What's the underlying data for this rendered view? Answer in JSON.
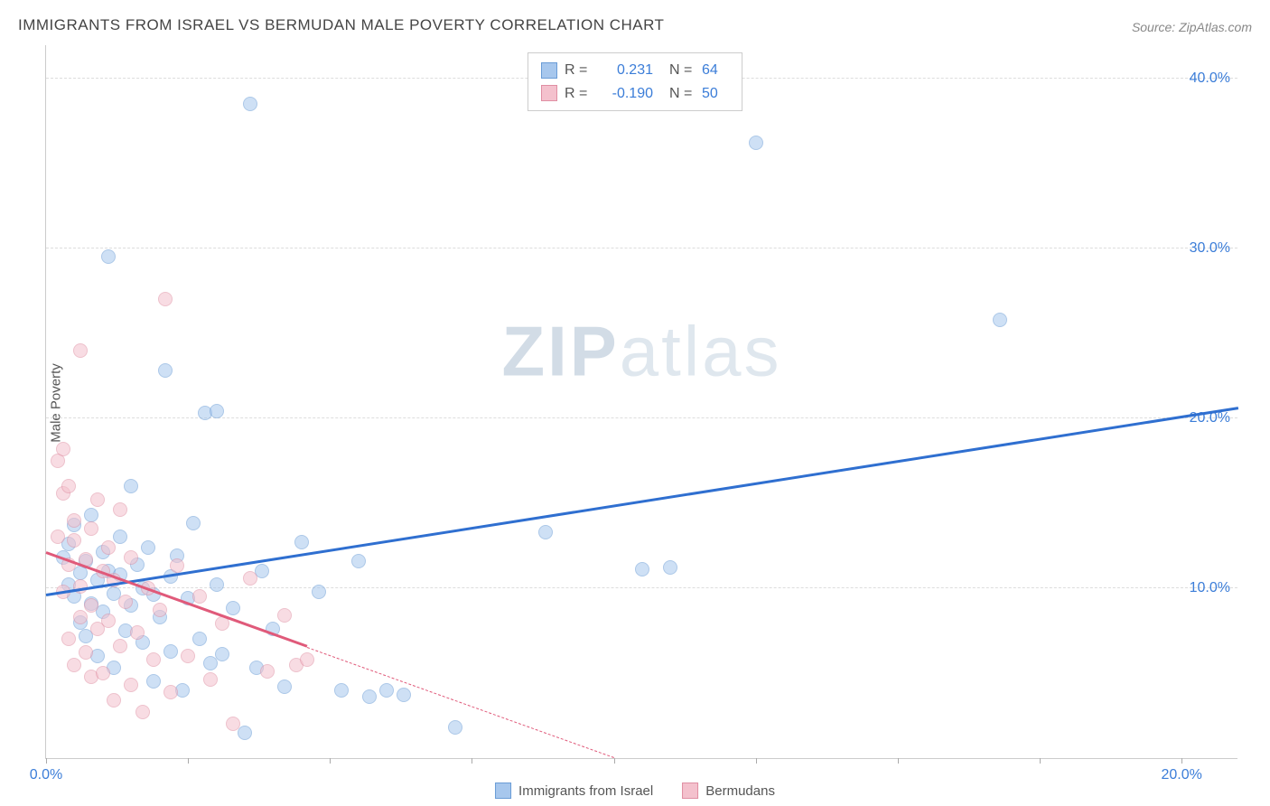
{
  "title": "IMMIGRANTS FROM ISRAEL VS BERMUDAN MALE POVERTY CORRELATION CHART",
  "source_prefix": "Source: ",
  "source": "ZipAtlas.com",
  "watermark_bold": "ZIP",
  "watermark_rest": "atlas",
  "ylabel": "Male Poverty",
  "chart": {
    "type": "scatter",
    "background_color": "#ffffff",
    "grid_color": "#dddddd",
    "axis_color": "#cccccc",
    "tick_color": "#3b7dd8",
    "xlim": [
      0,
      21
    ],
    "ylim": [
      0,
      42
    ],
    "yticks": [
      10,
      20,
      30,
      40
    ],
    "ytick_labels": [
      "10.0%",
      "20.0%",
      "30.0%",
      "40.0%"
    ],
    "xticks_visible": [
      0,
      20
    ],
    "xtick_labels": [
      "0.0%",
      "20.0%"
    ],
    "xtick_marks": [
      0,
      2.5,
      5,
      7.5,
      10,
      12.5,
      15,
      17.5,
      20
    ],
    "point_radius": 8,
    "point_border_width": 1,
    "point_opacity": 0.55,
    "trend_line_width": 3
  },
  "series": [
    {
      "name": "Immigrants from Israel",
      "fill": "#a7c7ed",
      "stroke": "#6a9cd6",
      "trend_color": "#2f6fd0",
      "r": 0.231,
      "n": 64,
      "trend": {
        "x1": 0,
        "y1": 9.5,
        "x2": 21,
        "y2": 20.5,
        "dashed_after_x": null
      },
      "points": [
        [
          0.3,
          11.8
        ],
        [
          0.4,
          10.2
        ],
        [
          0.4,
          12.6
        ],
        [
          0.5,
          9.5
        ],
        [
          0.5,
          13.7
        ],
        [
          0.6,
          8.0
        ],
        [
          0.6,
          10.9
        ],
        [
          0.7,
          11.6
        ],
        [
          0.7,
          7.2
        ],
        [
          0.8,
          14.3
        ],
        [
          0.8,
          9.1
        ],
        [
          0.9,
          10.5
        ],
        [
          0.9,
          6.0
        ],
        [
          1.0,
          12.1
        ],
        [
          1.0,
          8.6
        ],
        [
          1.1,
          11.0
        ],
        [
          1.1,
          29.5
        ],
        [
          1.2,
          9.7
        ],
        [
          1.2,
          5.3
        ],
        [
          1.3,
          10.8
        ],
        [
          1.3,
          13.0
        ],
        [
          1.4,
          7.5
        ],
        [
          1.5,
          16.0
        ],
        [
          1.5,
          9.0
        ],
        [
          1.6,
          11.4
        ],
        [
          1.7,
          6.8
        ],
        [
          1.7,
          10.0
        ],
        [
          1.8,
          12.4
        ],
        [
          1.9,
          4.5
        ],
        [
          1.9,
          9.6
        ],
        [
          2.0,
          8.3
        ],
        [
          2.1,
          22.8
        ],
        [
          2.2,
          10.7
        ],
        [
          2.2,
          6.3
        ],
        [
          2.3,
          11.9
        ],
        [
          2.4,
          4.0
        ],
        [
          2.5,
          9.4
        ],
        [
          2.6,
          13.8
        ],
        [
          2.7,
          7.0
        ],
        [
          2.8,
          20.3
        ],
        [
          2.9,
          5.6
        ],
        [
          3.0,
          10.2
        ],
        [
          3.0,
          20.4
        ],
        [
          3.1,
          6.1
        ],
        [
          3.3,
          8.8
        ],
        [
          3.5,
          1.5
        ],
        [
          3.6,
          38.5
        ],
        [
          3.7,
          5.3
        ],
        [
          3.8,
          11.0
        ],
        [
          4.0,
          7.6
        ],
        [
          4.2,
          4.2
        ],
        [
          4.5,
          12.7
        ],
        [
          4.8,
          9.8
        ],
        [
          5.2,
          4.0
        ],
        [
          5.5,
          11.6
        ],
        [
          5.7,
          3.6
        ],
        [
          6.0,
          4.0
        ],
        [
          6.3,
          3.7
        ],
        [
          7.2,
          1.8
        ],
        [
          8.8,
          13.3
        ],
        [
          10.5,
          11.1
        ],
        [
          11.0,
          11.2
        ],
        [
          12.5,
          36.2
        ],
        [
          16.8,
          25.8
        ]
      ]
    },
    {
      "name": "Bermudans",
      "fill": "#f4c1cd",
      "stroke": "#e08fa3",
      "trend_color": "#e05a7a",
      "r": -0.19,
      "n": 50,
      "trend": {
        "x1": 0,
        "y1": 12.0,
        "x2": 10.0,
        "y2": 0.0,
        "dashed_after_x": 4.6
      },
      "points": [
        [
          0.2,
          17.5
        ],
        [
          0.2,
          13.0
        ],
        [
          0.3,
          15.6
        ],
        [
          0.3,
          9.8
        ],
        [
          0.3,
          18.2
        ],
        [
          0.4,
          11.4
        ],
        [
          0.4,
          7.0
        ],
        [
          0.4,
          16.0
        ],
        [
          0.5,
          12.8
        ],
        [
          0.5,
          5.5
        ],
        [
          0.5,
          14.0
        ],
        [
          0.6,
          10.1
        ],
        [
          0.6,
          8.3
        ],
        [
          0.6,
          24.0
        ],
        [
          0.7,
          11.7
        ],
        [
          0.7,
          6.2
        ],
        [
          0.8,
          13.5
        ],
        [
          0.8,
          9.0
        ],
        [
          0.8,
          4.8
        ],
        [
          0.9,
          15.2
        ],
        [
          0.9,
          7.6
        ],
        [
          1.0,
          11.0
        ],
        [
          1.0,
          5.0
        ],
        [
          1.1,
          12.4
        ],
        [
          1.1,
          8.1
        ],
        [
          1.2,
          3.4
        ],
        [
          1.2,
          10.5
        ],
        [
          1.3,
          6.6
        ],
        [
          1.3,
          14.6
        ],
        [
          1.4,
          9.2
        ],
        [
          1.5,
          4.3
        ],
        [
          1.5,
          11.8
        ],
        [
          1.6,
          7.4
        ],
        [
          1.7,
          2.7
        ],
        [
          1.8,
          10.0
        ],
        [
          1.9,
          5.8
        ],
        [
          2.0,
          8.7
        ],
        [
          2.1,
          27.0
        ],
        [
          2.2,
          3.9
        ],
        [
          2.3,
          11.3
        ],
        [
          2.5,
          6.0
        ],
        [
          2.7,
          9.5
        ],
        [
          2.9,
          4.6
        ],
        [
          3.1,
          7.9
        ],
        [
          3.3,
          2.0
        ],
        [
          3.6,
          10.6
        ],
        [
          3.9,
          5.1
        ],
        [
          4.2,
          8.4
        ],
        [
          4.4,
          5.5
        ],
        [
          4.6,
          5.8
        ]
      ]
    }
  ],
  "legend_top": {
    "r_label": "R =",
    "n_label": "N ="
  },
  "legend_bottom": [
    {
      "label": "Immigrants from Israel",
      "fill": "#a7c7ed",
      "stroke": "#6a9cd6"
    },
    {
      "label": "Bermudans",
      "fill": "#f4c1cd",
      "stroke": "#e08fa3"
    }
  ]
}
